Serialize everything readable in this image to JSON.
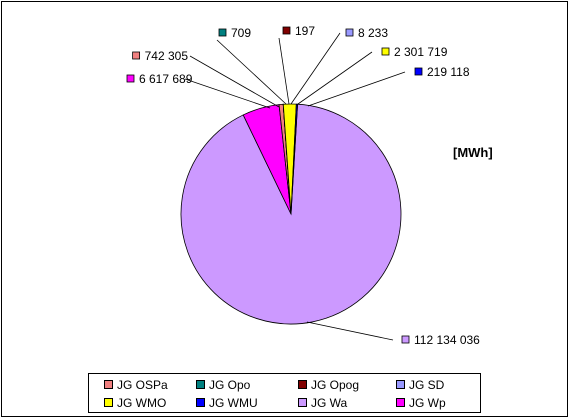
{
  "chart_data": {
    "type": "pie",
    "unit_label": "[MWh]",
    "series": [
      {
        "name": "JG OSPa",
        "value": 742305,
        "label": "742 305",
        "color": "#f08080"
      },
      {
        "name": "JG Opo",
        "value": 709,
        "label": "709",
        "color": "#008080"
      },
      {
        "name": "JG Opog",
        "value": 197,
        "label": "197",
        "color": "#800000"
      },
      {
        "name": "JG SD",
        "value": 8233,
        "label": "8 233",
        "color": "#9999ff"
      },
      {
        "name": "JG WMO",
        "value": 2301719,
        "label": "2 301 719",
        "color": "#ffff00"
      },
      {
        "name": "JG WMU",
        "value": 219118,
        "label": "219 118",
        "color": "#0000ff"
      },
      {
        "name": "JG Wa",
        "value": 112134036,
        "label": "112 134 036",
        "color": "#cc99ff"
      },
      {
        "name": "JG Wp",
        "value": 6617689,
        "label": "6 617 689",
        "color": "#ff00ff"
      }
    ],
    "legend_position": "bottom"
  }
}
